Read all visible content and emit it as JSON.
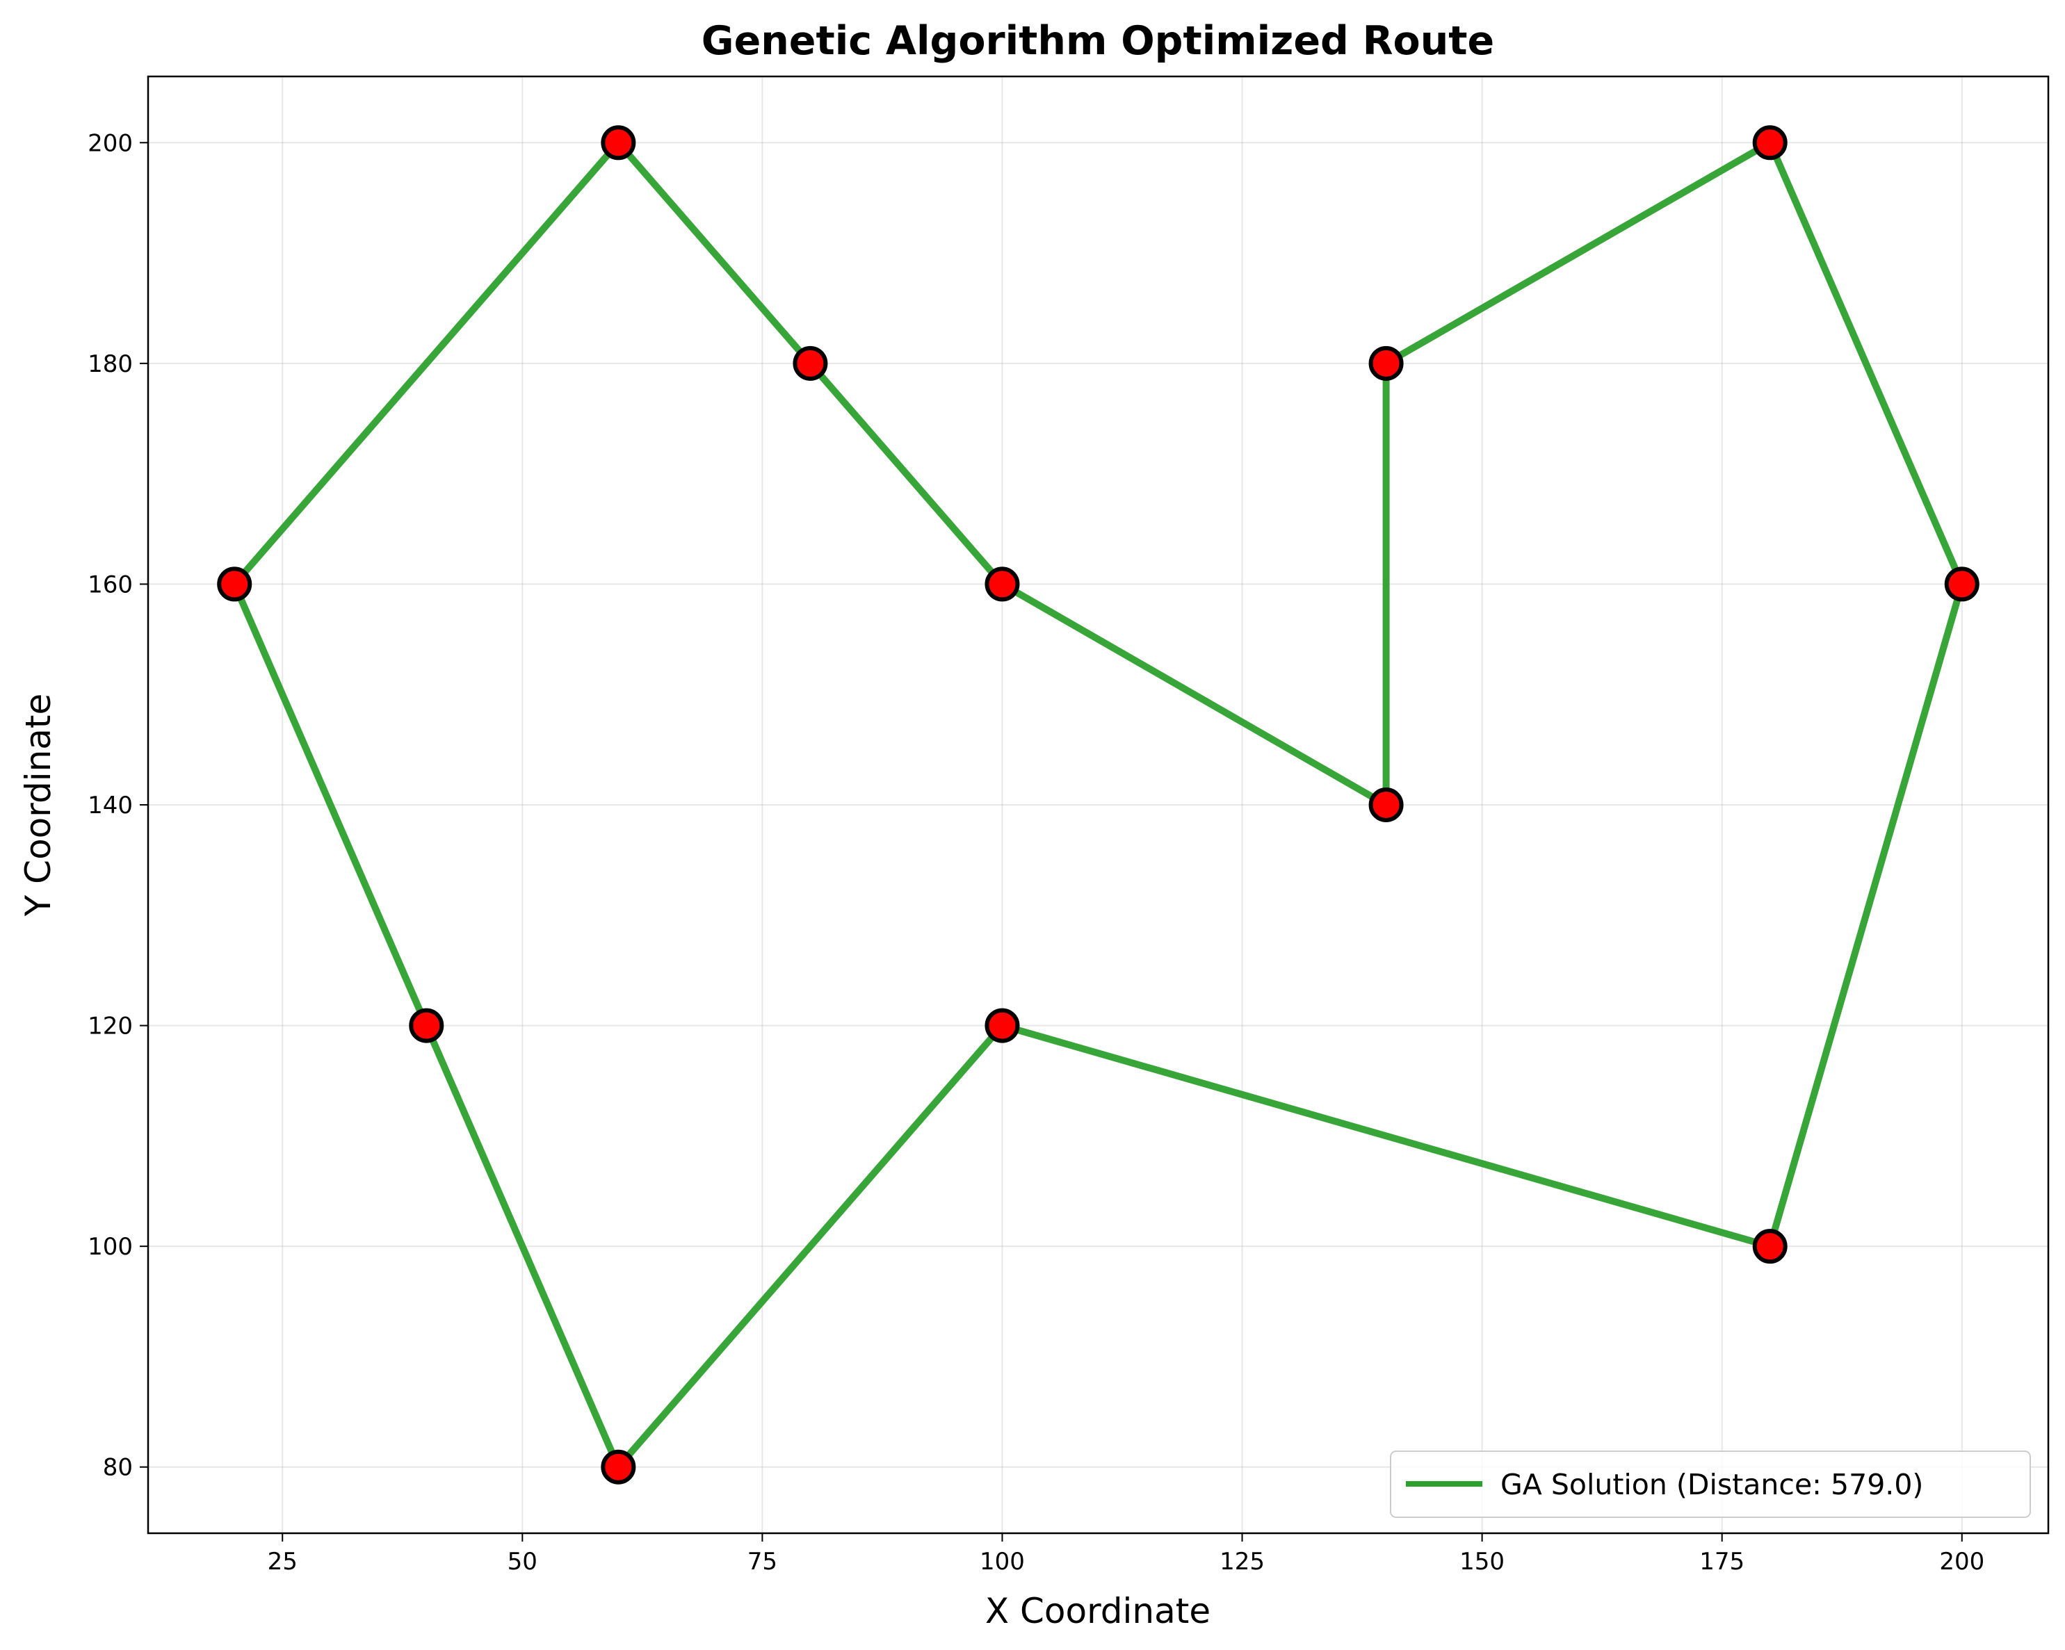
{
  "chart_data": {
    "type": "line",
    "title": "Genetic Algorithm Optimized Route",
    "xlabel": "X Coordinate",
    "ylabel": "Y Coordinate",
    "xlim": [
      11.0,
      209.0
    ],
    "ylim": [
      74.0,
      206.0
    ],
    "xticks": [
      25,
      50,
      75,
      100,
      125,
      150,
      175,
      200
    ],
    "yticks": [
      80,
      100,
      120,
      140,
      160,
      180,
      200
    ],
    "grid": true,
    "legend_position": "lower-right",
    "series": [
      {
        "name": "GA Solution (Distance: 579.0)",
        "color": "#2ca02c",
        "closed": true,
        "points": [
          {
            "x": 20,
            "y": 160
          },
          {
            "x": 60,
            "y": 200
          },
          {
            "x": 80,
            "y": 180
          },
          {
            "x": 100,
            "y": 160
          },
          {
            "x": 140,
            "y": 140
          },
          {
            "x": 140,
            "y": 180
          },
          {
            "x": 180,
            "y": 200
          },
          {
            "x": 200,
            "y": 160
          },
          {
            "x": 180,
            "y": 100
          },
          {
            "x": 100,
            "y": 120
          },
          {
            "x": 60,
            "y": 80
          },
          {
            "x": 40,
            "y": 120
          }
        ]
      }
    ],
    "marker_color": "#ff0000",
    "marker_edge_color": "#000000"
  }
}
